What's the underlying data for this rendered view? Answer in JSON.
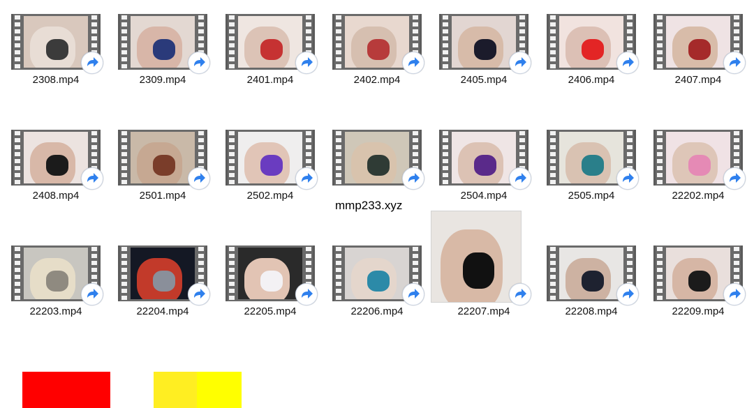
{
  "files": [
    {
      "name": "2308.mp4",
      "type": "video"
    },
    {
      "name": "2309.mp4",
      "type": "video"
    },
    {
      "name": "2401.mp4",
      "type": "video"
    },
    {
      "name": "2402.mp4",
      "type": "video"
    },
    {
      "name": "2405.mp4",
      "type": "video"
    },
    {
      "name": "2406.mp4",
      "type": "video"
    },
    {
      "name": "2407.mp4",
      "type": "video"
    },
    {
      "name": "2408.mp4",
      "type": "video"
    },
    {
      "name": "2501.mp4",
      "type": "video"
    },
    {
      "name": "2502.mp4",
      "type": "video"
    },
    {
      "name": "",
      "type": "video-unlabeled"
    },
    {
      "name": "2504.mp4",
      "type": "video"
    },
    {
      "name": "2505.mp4",
      "type": "video"
    },
    {
      "name": "22202.mp4",
      "type": "video"
    },
    {
      "name": "22203.mp4",
      "type": "video"
    },
    {
      "name": "22204.mp4",
      "type": "video"
    },
    {
      "name": "22205.mp4",
      "type": "video"
    },
    {
      "name": "22206.mp4",
      "type": "video"
    },
    {
      "name": "22207.mp4",
      "type": "video-plain"
    },
    {
      "name": "22208.mp4",
      "type": "video"
    },
    {
      "name": "22209.mp4",
      "type": "video"
    }
  ],
  "overlay_text": "mmp233.xyz",
  "colors": {
    "red_swatch": "#ff0000",
    "yellow_swatch_left": "#ffee22",
    "yellow_swatch_right": "#ffff00",
    "shortcut_arrow": "#2f80ed"
  },
  "icons": {
    "shortcut": "shortcut-arrow-icon"
  }
}
